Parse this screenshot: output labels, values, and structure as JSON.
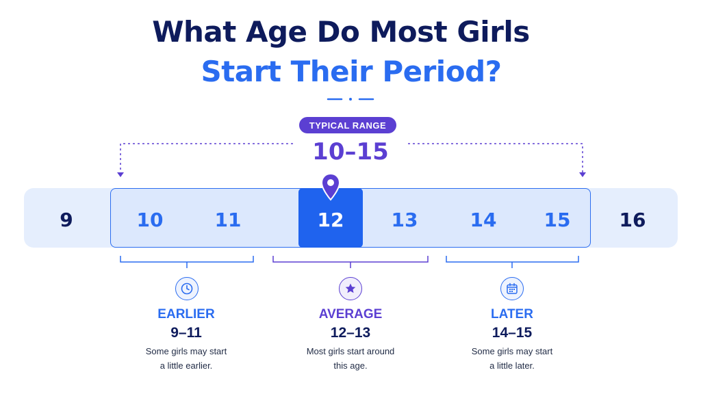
{
  "title": {
    "line1": "What Age Do Most Girls",
    "line2": "Start Their Period?"
  },
  "typical_range": {
    "badge": "TYPICAL RANGE",
    "value": "10–15"
  },
  "ages": [
    "9",
    "10",
    "11",
    "12",
    "13",
    "14",
    "15",
    "16"
  ],
  "highlighted_age": "12",
  "groups": [
    {
      "label": "EARLIER",
      "range": "9–11",
      "desc_line1": "Some girls may start",
      "desc_line2": "a little earlier.",
      "icon": "clock-icon"
    },
    {
      "label": "AVERAGE",
      "range": "12–13",
      "desc_line1": "Most girls start around",
      "desc_line2": "this age.",
      "icon": "star-icon"
    },
    {
      "label": "LATER",
      "range": "14–15",
      "desc_line1": "Some girls may start",
      "desc_line2": "a little later.",
      "icon": "calendar-icon"
    }
  ],
  "colors": {
    "navy": "#0e1b5c",
    "blue": "#2a6cf0",
    "purple": "#5b3fd2",
    "highlight": "#1f63ee",
    "track": "#e5eefd"
  }
}
